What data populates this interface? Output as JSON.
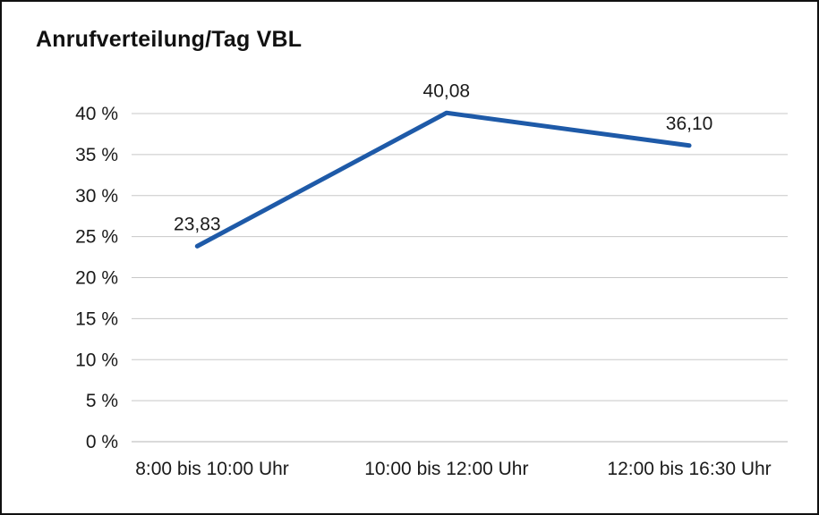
{
  "chart": {
    "title": "Anrufverteilung/Tag VBL"
  },
  "chart_data": {
    "type": "line",
    "title": "Anrufverteilung/Tag VBL",
    "categories": [
      "8:00 bis 10:00 Uhr",
      "10:00 bis 12:00 Uhr",
      "12:00 bis 16:30 Uhr"
    ],
    "values": [
      23.83,
      40.08,
      36.1
    ],
    "point_labels": [
      "23,83",
      "40,08",
      "36,10"
    ],
    "series_name": "Anrufverteilung/Tag VBL",
    "ylim": [
      0,
      40
    ],
    "ytick_step": 5,
    "ytick_labels": [
      "0 %",
      "5 %",
      "10 %",
      "15 %",
      "20 %",
      "25 %",
      "30 %",
      "35 %",
      "40 %"
    ],
    "xlabel": "",
    "ylabel": "",
    "grid": "horizontal",
    "legend": "none",
    "line_color": "#1e5aa8",
    "grid_color": "#c8c8c8",
    "axis_color": "#b5b5b5",
    "text_color": "#1a1a1a",
    "background_color": "#ffffff"
  }
}
